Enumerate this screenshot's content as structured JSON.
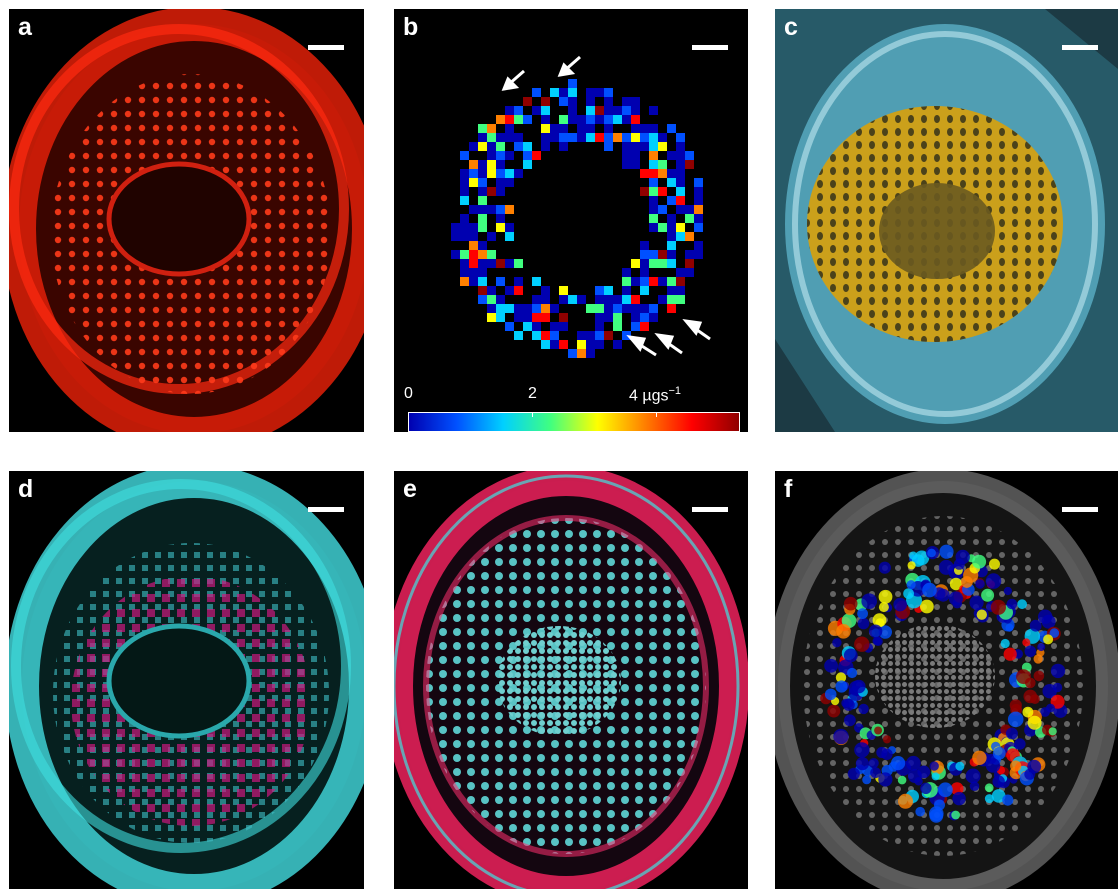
{
  "panels": [
    {
      "label": "a",
      "colormap": "red"
    },
    {
      "label": "b",
      "colormap": "jet-heatmap"
    },
    {
      "label": "c",
      "colormap": "cyan-with-orange-overlay"
    },
    {
      "label": "d",
      "colormap": "cyan-magenta"
    },
    {
      "label": "e",
      "colormap": "cyan-red"
    },
    {
      "label": "f",
      "colormap": "gray-with-jet-overlay"
    }
  ],
  "colorbar": {
    "tick_labels": [
      "0",
      "2",
      "4"
    ],
    "unit_prefix": "µgs",
    "unit_exponent": "−1",
    "colors": [
      "#0000b0",
      "#0050ff",
      "#00d0ff",
      "#40ff80",
      "#ffff00",
      "#ff8000",
      "#ff0000",
      "#900000"
    ]
  },
  "colors": {
    "red_stain": "#ff2a10",
    "cyan_stain": "#40e8e8",
    "magenta_stain": "#ff2080",
    "orange_overlay": "#e0a000"
  }
}
